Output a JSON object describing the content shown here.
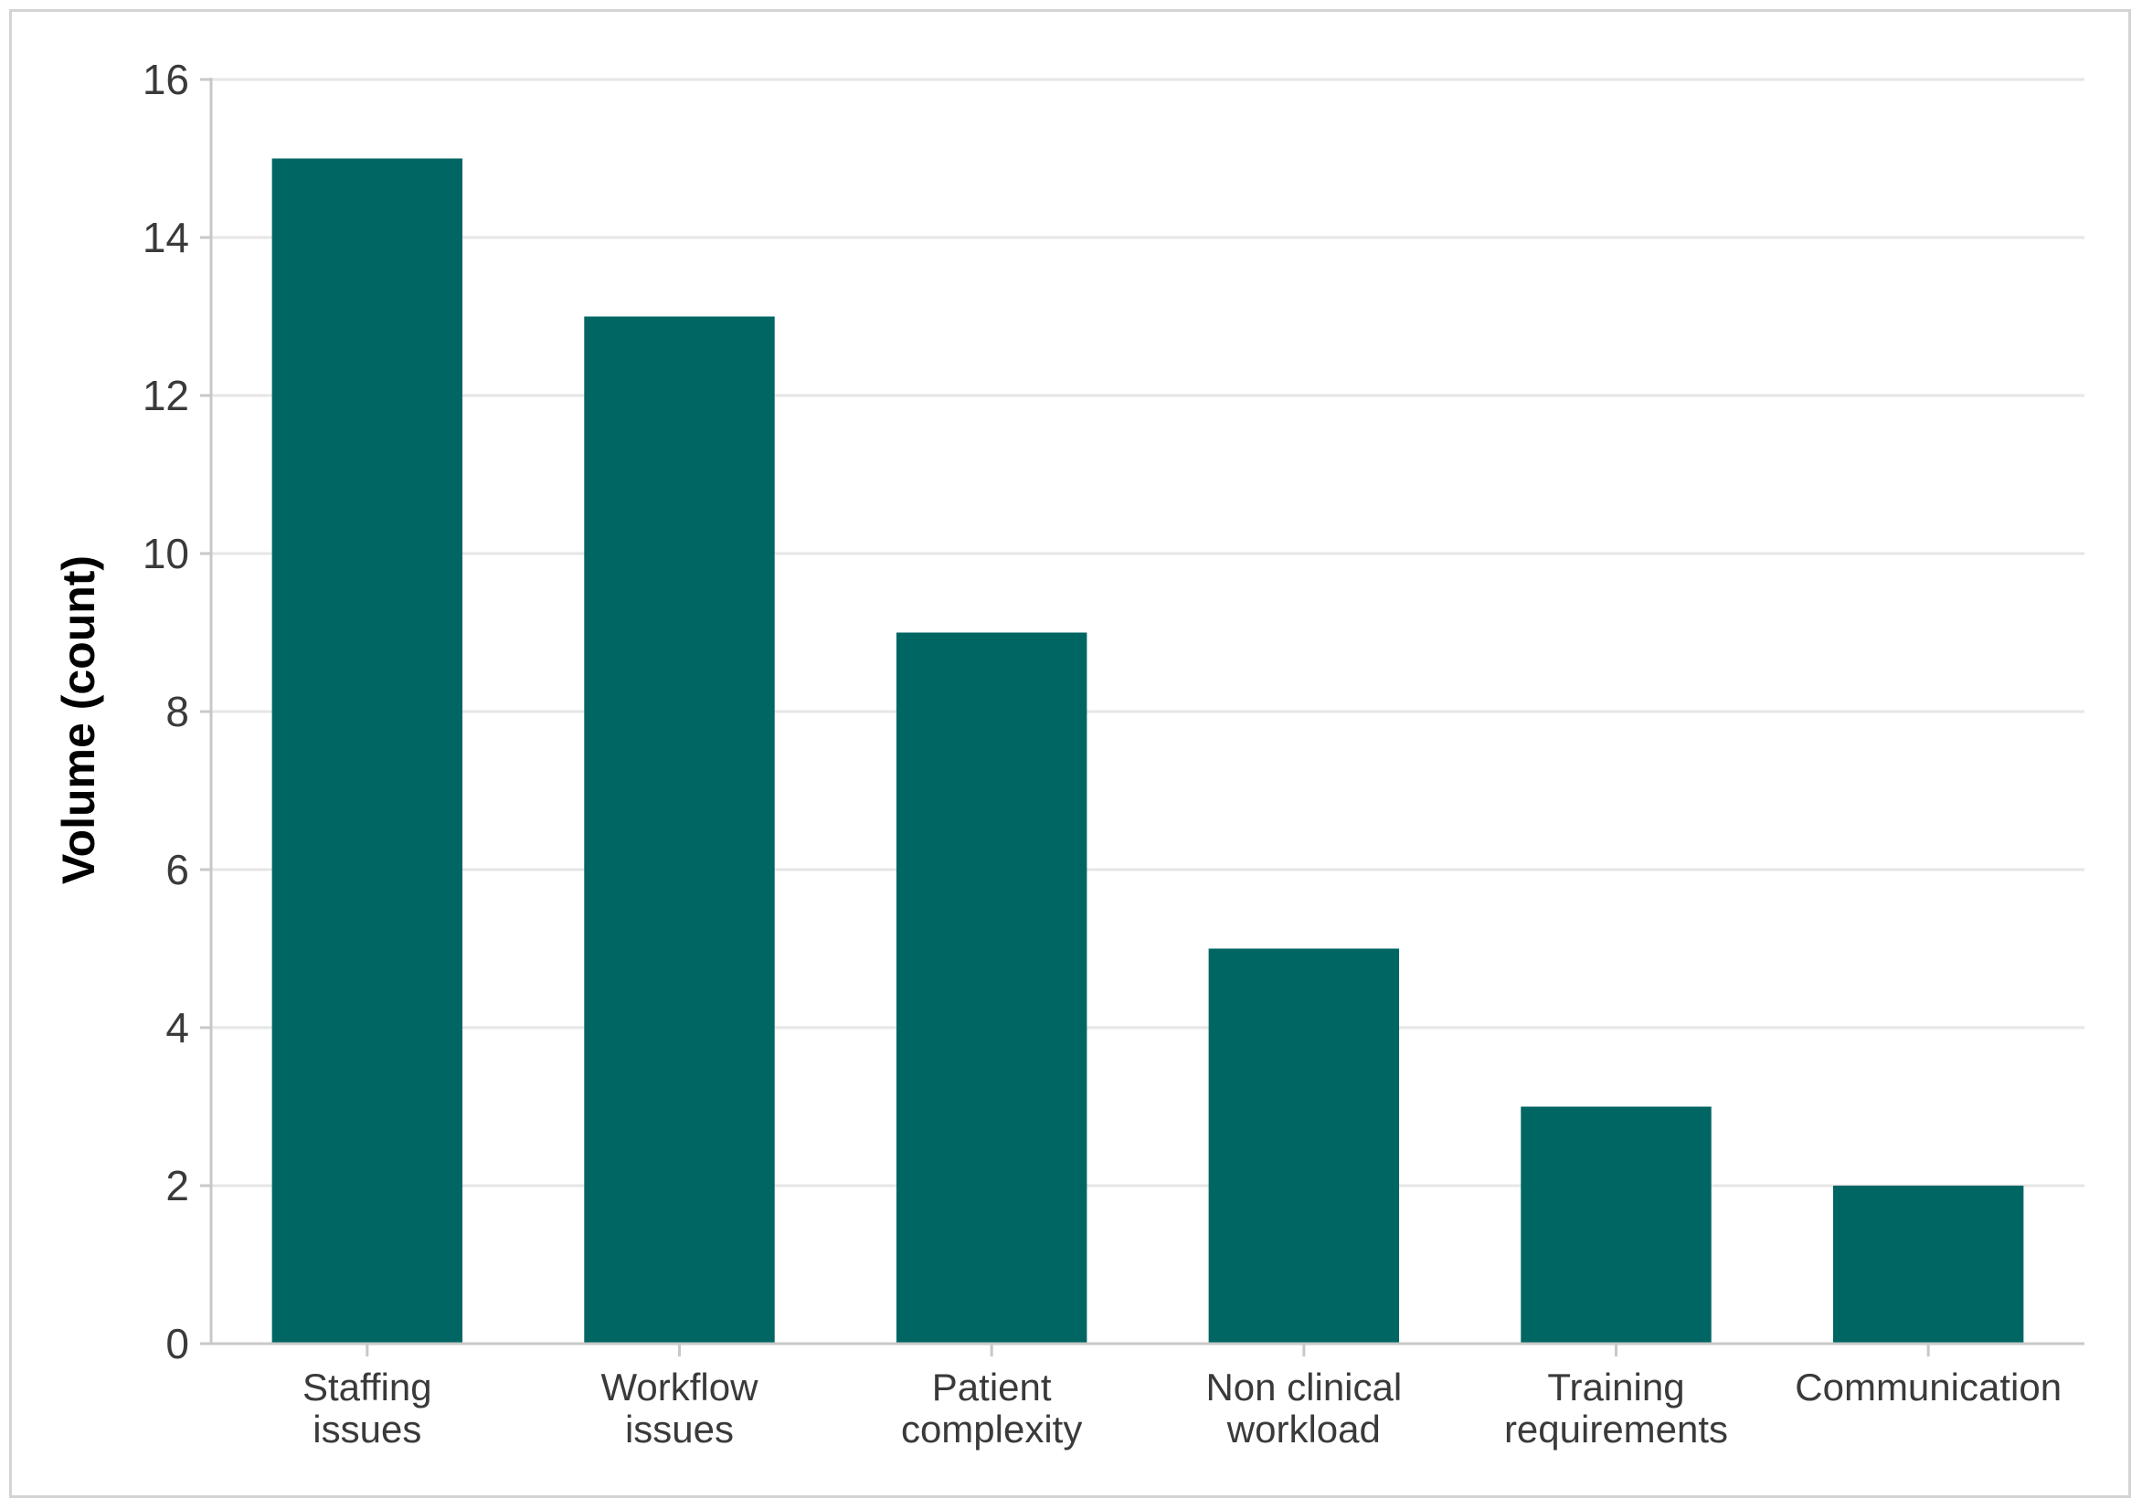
{
  "chart_data": {
    "type": "bar",
    "categories": [
      [
        "Staffing",
        "issues"
      ],
      [
        "Workflow",
        "issues"
      ],
      [
        "Patient",
        "complexity"
      ],
      [
        "Non clinical",
        "workload"
      ],
      [
        "Training",
        "requirements"
      ],
      [
        "Communication"
      ]
    ],
    "values": [
      15,
      13,
      9,
      5,
      3,
      2
    ],
    "ylabel": "Volume (count)",
    "xlabel": "",
    "ylim": [
      0,
      16
    ],
    "yticks": [
      0,
      2,
      4,
      6,
      8,
      10,
      12,
      14,
      16
    ],
    "grid": "horizontal",
    "bar_color": "#006663",
    "grid_color": "#e6e6e6",
    "axis_color": "#c8c8c8"
  }
}
